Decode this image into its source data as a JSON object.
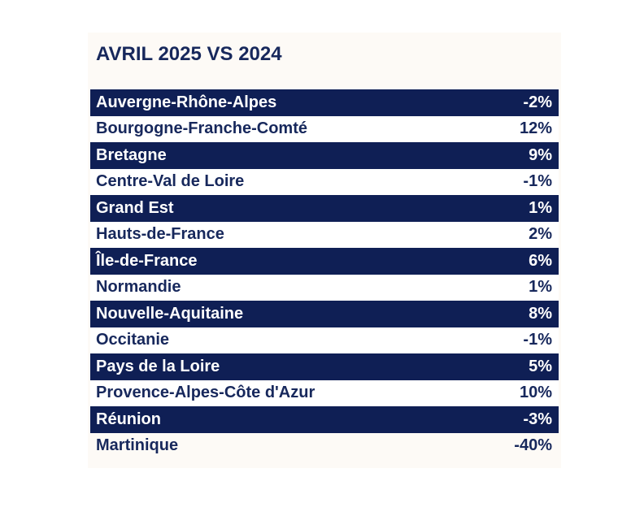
{
  "chart_data": {
    "type": "table",
    "title": "AVRIL 2025 VS 2024",
    "columns": [
      "",
      ""
    ],
    "value_unit": "%",
    "rows": [
      {
        "region": "Auvergne-Rhône-Alpes",
        "value": -2,
        "label": "-2%"
      },
      {
        "region": "Bourgogne-Franche-Comté",
        "value": 12,
        "label": "12%"
      },
      {
        "region": "Bretagne",
        "value": 9,
        "label": "9%"
      },
      {
        "region": "Centre-Val de Loire",
        "value": -1,
        "label": "-1%"
      },
      {
        "region": "Grand Est",
        "value": 1,
        "label": "1%"
      },
      {
        "region": "Hauts-de-France",
        "value": 2,
        "label": "2%"
      },
      {
        "region": "Île-de-France",
        "value": 6,
        "label": "6%"
      },
      {
        "region": "Normandie",
        "value": 1,
        "label": "1%"
      },
      {
        "region": "Nouvelle-Aquitaine",
        "value": 8,
        "label": "8%"
      },
      {
        "region": "Occitanie",
        "value": -1,
        "label": "-1%"
      },
      {
        "region": "Pays de la Loire",
        "value": 5,
        "label": "5%"
      },
      {
        "region": "Provence-Alpes-Côte d'Azur",
        "value": 10,
        "label": "10%"
      },
      {
        "region": "Réunion",
        "value": -3,
        "label": "-3%"
      },
      {
        "region": "Martinique",
        "value": -40,
        "label": "-40%"
      }
    ]
  },
  "colors": {
    "row_dark": "#0f1f55",
    "text_dark": "#17285c",
    "row_light": "#ffffff",
    "card_background": "#fdfaf6"
  }
}
